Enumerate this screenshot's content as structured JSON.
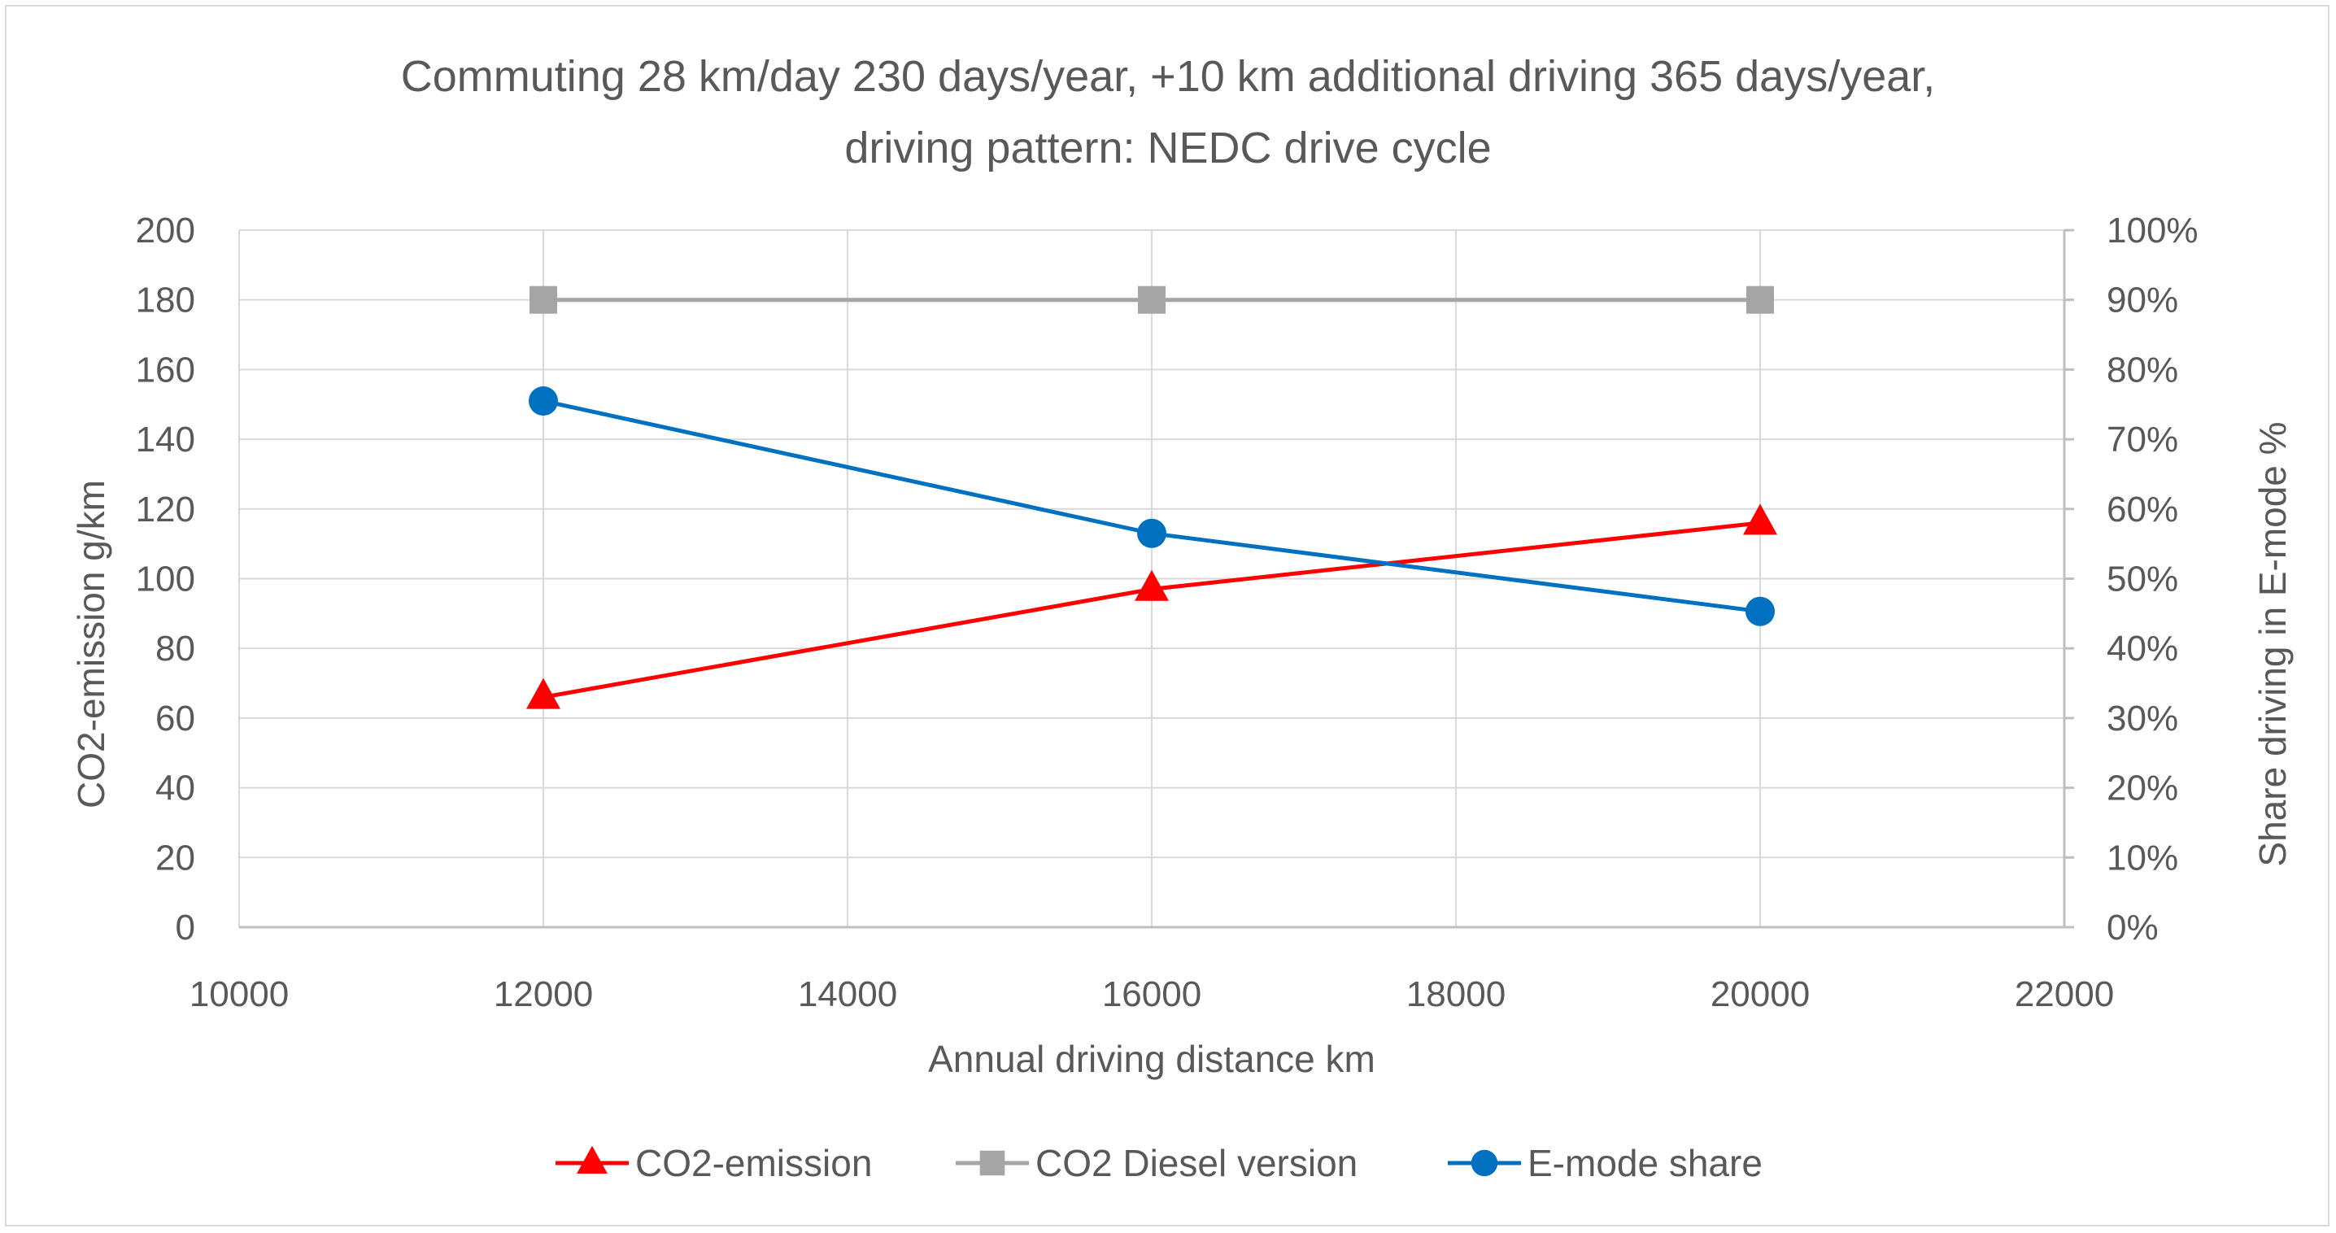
{
  "chart_data": {
    "type": "line",
    "title_lines": [
      "Commuting 28 km/day 230 days/year, +10 km additional driving 365 days/year,",
      "driving pattern: NEDC drive cycle"
    ],
    "xlabel": "Annual driving distance km",
    "ylabel": "CO2-emission g/km",
    "y2label": "Share driving in E-mode %",
    "xlim": [
      10000,
      22000
    ],
    "ylim": [
      0,
      200
    ],
    "y2lim": [
      0,
      100
    ],
    "x_ticks": [
      10000,
      12000,
      14000,
      16000,
      18000,
      20000,
      22000
    ],
    "y_ticks": [
      0,
      20,
      40,
      60,
      80,
      100,
      120,
      140,
      160,
      180,
      200
    ],
    "y2_ticks": [
      "0%",
      "10%",
      "20%",
      "30%",
      "40%",
      "50%",
      "60%",
      "70%",
      "80%",
      "90%",
      "100%"
    ],
    "grid": true,
    "legend_position": "bottom",
    "series": [
      {
        "name": "CO2-emission",
        "axis": "left",
        "color": "#ff0000",
        "marker": "triangle",
        "x": [
          12000,
          16000,
          20000
        ],
        "values": [
          66,
          97,
          116
        ]
      },
      {
        "name": "CO2 Diesel version",
        "axis": "left",
        "color": "#a5a5a5",
        "marker": "square",
        "x": [
          12000,
          16000,
          20000
        ],
        "values": [
          180,
          180,
          180
        ]
      },
      {
        "name": "E-mode share",
        "axis": "right",
        "color": "#0070c0",
        "marker": "circle",
        "x": [
          12000,
          16000,
          20000
        ],
        "values": [
          75.5,
          56.5,
          45.3
        ]
      }
    ]
  }
}
